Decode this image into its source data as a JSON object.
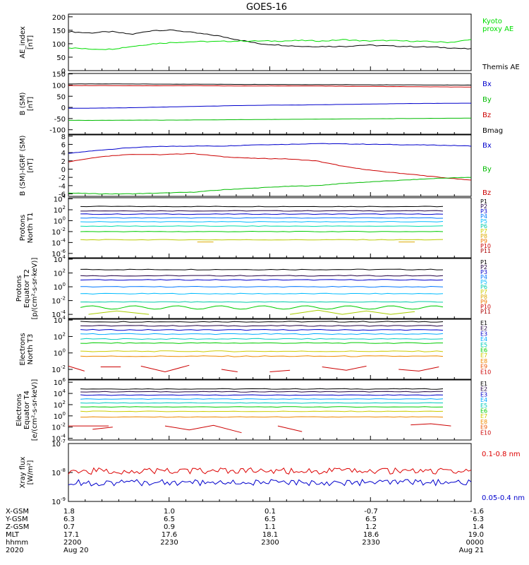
{
  "title": "GOES-16",
  "chart_data": [
    {
      "type": "line",
      "id": "ae",
      "ylabel": "AE_index\n[nT]",
      "ylim": [
        0,
        200
      ],
      "yticks": [
        "200",
        "150",
        "100",
        "50",
        "0"
      ],
      "legend": [
        {
          "name": "Kyoto\nproxy AE",
          "color": "#00dd00"
        },
        {
          "name": "Themis AE",
          "color": "#000000"
        }
      ],
      "series": [
        {
          "name": "Themis AE",
          "color": "#000000",
          "values": [
            145,
            140,
            145,
            135,
            150,
            150,
            140,
            130,
            115,
            100,
            95,
            90,
            90,
            90,
            95,
            92,
            90,
            88,
            85,
            80
          ]
        },
        {
          "name": "Kyoto proxy AE",
          "color": "#00dd00",
          "values": [
            85,
            80,
            80,
            90,
            100,
            105,
            108,
            108,
            110,
            110,
            110,
            112,
            110,
            115,
            110,
            112,
            110,
            108,
            105,
            115
          ]
        }
      ]
    },
    {
      "type": "line",
      "id": "bsm",
      "ylabel": "B (SM)\n[nT]",
      "ylim": [
        -120,
        150
      ],
      "yticks": [
        "150",
        "100",
        "50",
        "0",
        "-50",
        "-100"
      ],
      "legend": [
        {
          "name": "Bx",
          "color": "#0000cc"
        },
        {
          "name": "By",
          "color": "#00bb00"
        },
        {
          "name": "Bz",
          "color": "#cc0000"
        },
        {
          "name": "Bmag",
          "color": "#000000"
        }
      ],
      "series": [
        {
          "name": "Bmag",
          "color": "#000000",
          "values": [
            105,
            105,
            105,
            104,
            104,
            103,
            103,
            102,
            102,
            101,
            101,
            100,
            100
          ]
        },
        {
          "name": "Bz",
          "color": "#cc0000",
          "values": [
            98,
            98,
            97,
            97,
            97,
            96,
            96,
            96,
            95,
            94,
            93,
            92,
            91
          ]
        },
        {
          "name": "Bx",
          "color": "#0000cc",
          "values": [
            -4,
            -3,
            -1,
            2,
            5,
            8,
            10,
            11,
            13,
            15,
            17,
            18,
            19
          ]
        },
        {
          "name": "By",
          "color": "#00bb00",
          "values": [
            -58,
            -58,
            -57,
            -57,
            -56,
            -55,
            -54,
            -53,
            -52,
            -51,
            -50,
            -49,
            -48
          ]
        }
      ]
    },
    {
      "type": "line",
      "id": "bdiff",
      "ylabel": "B (SM)-IGRF (SM)\n[nT]",
      "ylim": [
        -6.5,
        8
      ],
      "yticks": [
        "8",
        "6",
        "4",
        "2",
        "0",
        "-2",
        "-4",
        "-6"
      ],
      "legend": [
        {
          "name": "Bx",
          "color": "#0000cc"
        },
        {
          "name": "By",
          "color": "#00bb00"
        },
        {
          "name": "Bz",
          "color": "#cc0000"
        }
      ],
      "series": [
        {
          "name": "Bx",
          "color": "#0000cc",
          "values": [
            3.8,
            4.6,
            5.2,
            5.5,
            5.6,
            5.6,
            5.9,
            6.0,
            6.2,
            6.1,
            6.0,
            5.9,
            5.8,
            5.6
          ]
        },
        {
          "name": "Bz",
          "color": "#cc0000",
          "values": [
            1.8,
            3.0,
            3.6,
            3.5,
            3.8,
            3.0,
            2.6,
            2.5,
            2.0,
            0.5,
            -0.5,
            -1.2,
            -2.0,
            -2.7
          ]
        },
        {
          "name": "By",
          "color": "#00bb00",
          "values": [
            -5.8,
            -6.0,
            -6.0,
            -5.8,
            -5.6,
            -5.0,
            -4.6,
            -4.2,
            -4.0,
            -3.4,
            -3.0,
            -2.6,
            -2.2,
            -2.0
          ]
        }
      ]
    },
    {
      "type": "line",
      "id": "pnorth",
      "ylabel": "Protons\nNorth T1",
      "log": true,
      "ytick_exps": [
        4,
        2,
        0,
        -2,
        -4,
        -6
      ],
      "legend": [
        "P1",
        "P2",
        "P3",
        "P4",
        "P5",
        "P6",
        "P7",
        "P8",
        "P9",
        "P10",
        "P11"
      ],
      "levels": [
        2.6,
        1.8,
        1.2,
        0.5,
        -0.2,
        -1.0,
        -2.0,
        -3.5
      ],
      "colors": [
        "#000000",
        "#220044",
        "#0000cc",
        "#0077ff",
        "#00bbff",
        "#00ddaa",
        "#00cc00",
        "#bbcc00"
      ],
      "fragments": [
        {
          "x": [
            0.32,
            0.36
          ],
          "y": [
            -3.9,
            -3.9
          ],
          "color": "#ddaa00"
        },
        {
          "x": [
            0.82,
            0.86
          ],
          "y": [
            -3.9,
            -3.9
          ],
          "color": "#ddaa00"
        }
      ]
    },
    {
      "type": "line",
      "id": "pequator",
      "ylabel": "Protons\nEquator T2\n[p/(cm²-s-sr-keV)]",
      "log": true,
      "ytick_exps": [
        4,
        2,
        0,
        -2,
        -4
      ],
      "legend": [
        "P1",
        "P2",
        "P3",
        "P4",
        "P5",
        "P6",
        "P7",
        "P8",
        "P9",
        "P10",
        "P11"
      ],
      "levels": [
        2.5,
        1.6,
        1.0,
        0.0,
        -1.0,
        -2.2,
        -3.0
      ],
      "colors": [
        "#000000",
        "#220044",
        "#0000cc",
        "#0077ff",
        "#00bbff",
        "#00ccaa",
        "#00cc00"
      ],
      "fragments": [
        {
          "x": [
            0.05,
            0.12,
            0.2
          ],
          "y": [
            -4.0,
            -3.5,
            -4.0
          ],
          "color": "#aacc00"
        },
        {
          "x": [
            0.55,
            0.62,
            0.68,
            0.74,
            0.8,
            0.86
          ],
          "y": [
            -4.0,
            -3.4,
            -4.0,
            -3.5,
            -4.0,
            -3.6
          ],
          "color": "#aacc00"
        }
      ]
    },
    {
      "type": "line",
      "id": "enorth",
      "ylabel": "Electrons\nNorth T3",
      "log": true,
      "ytick_exps": [
        4,
        2,
        0,
        -2
      ],
      "legend": [
        "E1",
        "E2",
        "E3",
        "E4",
        "E5",
        "E6",
        "E7",
        "E8",
        "E9",
        "E10"
      ],
      "levels": [
        3.8,
        3.3,
        2.8,
        2.3,
        1.7,
        1.2,
        0.2,
        -0.4
      ],
      "colors": [
        "#000000",
        "#220044",
        "#0000cc",
        "#00aaff",
        "#00ccbb",
        "#00cc00",
        "#cccc00",
        "#ee8800"
      ],
      "fragments": [
        {
          "x": [
            0.0,
            0.04
          ],
          "y": [
            -1.6,
            -2.2
          ],
          "color": "#cc0000"
        },
        {
          "x": [
            0.08,
            0.13
          ],
          "y": [
            -1.7,
            -1.7
          ],
          "color": "#cc0000"
        },
        {
          "x": [
            0.18,
            0.24,
            0.3
          ],
          "y": [
            -1.6,
            -2.3,
            -1.5
          ],
          "color": "#cc0000"
        },
        {
          "x": [
            0.38,
            0.42
          ],
          "y": [
            -2.0,
            -2.3
          ],
          "color": "#cc0000"
        },
        {
          "x": [
            0.5,
            0.55
          ],
          "y": [
            -2.3,
            -2.1
          ],
          "color": "#cc0000"
        },
        {
          "x": [
            0.63,
            0.69,
            0.74
          ],
          "y": [
            -1.7,
            -2.1,
            -1.6
          ],
          "color": "#cc0000"
        },
        {
          "x": [
            0.82,
            0.87,
            0.92
          ],
          "y": [
            -2.0,
            -2.2,
            -1.7
          ],
          "color": "#cc0000"
        }
      ]
    },
    {
      "type": "line",
      "id": "eequator",
      "ylabel": "Electrons\nEquator T4\n[e/(cm²-s-sr-keV)]",
      "log": true,
      "ytick_exps": [
        6,
        4,
        2,
        0,
        -2,
        -4
      ],
      "legend": [
        "E1",
        "E2",
        "E3",
        "E4",
        "E5",
        "E6",
        "E7",
        "E8",
        "E9",
        "E10"
      ],
      "levels": [
        4.8,
        4.3,
        3.7,
        3.0,
        2.3,
        1.6,
        0.8,
        -0.2
      ],
      "colors": [
        "#000000",
        "#220044",
        "#0000cc",
        "#00aaff",
        "#00ccbb",
        "#00cc00",
        "#cccc00",
        "#ee8800"
      ],
      "fragments": [
        {
          "x": [
            0.0,
            0.1
          ],
          "y": [
            -1.8,
            -1.8
          ],
          "color": "#cc0000"
        },
        {
          "x": [
            0.06,
            0.11
          ],
          "y": [
            -2.4,
            -2.0
          ],
          "color": "#cc0000"
        },
        {
          "x": [
            0.24,
            0.3,
            0.36,
            0.43
          ],
          "y": [
            -1.8,
            -2.5,
            -1.7,
            -3.0
          ],
          "color": "#cc0000"
        },
        {
          "x": [
            0.52,
            0.58
          ],
          "y": [
            -1.8,
            -2.8
          ],
          "color": "#cc0000"
        },
        {
          "x": [
            0.85,
            0.9,
            0.95
          ],
          "y": [
            -1.6,
            -1.4,
            -1.8
          ],
          "color": "#cc0000"
        }
      ]
    },
    {
      "type": "line",
      "id": "xray",
      "ylabel": "Xray  flux\n[W/m²]",
      "log": true,
      "ytick_exps": [
        -7,
        -8,
        -9
      ],
      "legend": [
        {
          "name": "0.1-0.8 nm",
          "color": "#dd0000"
        },
        {
          "name": "0.05-0.4 nm",
          "color": "#0000cc"
        }
      ],
      "series": [
        {
          "name": "0.1-0.8 nm",
          "color": "#dd0000",
          "base": -7.95
        },
        {
          "name": "0.05-0.4 nm",
          "color": "#0000cc",
          "base": -8.35
        }
      ]
    }
  ],
  "footer": {
    "rows": [
      {
        "label": "X-GSM",
        "values": [
          "1.8",
          "1.0",
          "0.1",
          "-0.7",
          "-1.6"
        ]
      },
      {
        "label": "Y-GSM",
        "values": [
          "6.3",
          "6.5",
          "6.5",
          "6.5",
          "6.3"
        ]
      },
      {
        "label": "Z-GSM",
        "values": [
          "0.7",
          "0.9",
          "1.1",
          "1.2",
          "1.4"
        ]
      },
      {
        "label": "MLT",
        "values": [
          "17.1",
          "17.6",
          "18.1",
          "18.6",
          "19.0"
        ]
      },
      {
        "label": "hhmm",
        "values": [
          "2200",
          "2230",
          "2300",
          "2330",
          "0000"
        ]
      },
      {
        "label": "2020",
        "values": [
          "Aug 20",
          "",
          "",
          "",
          "Aug 21"
        ]
      }
    ]
  }
}
